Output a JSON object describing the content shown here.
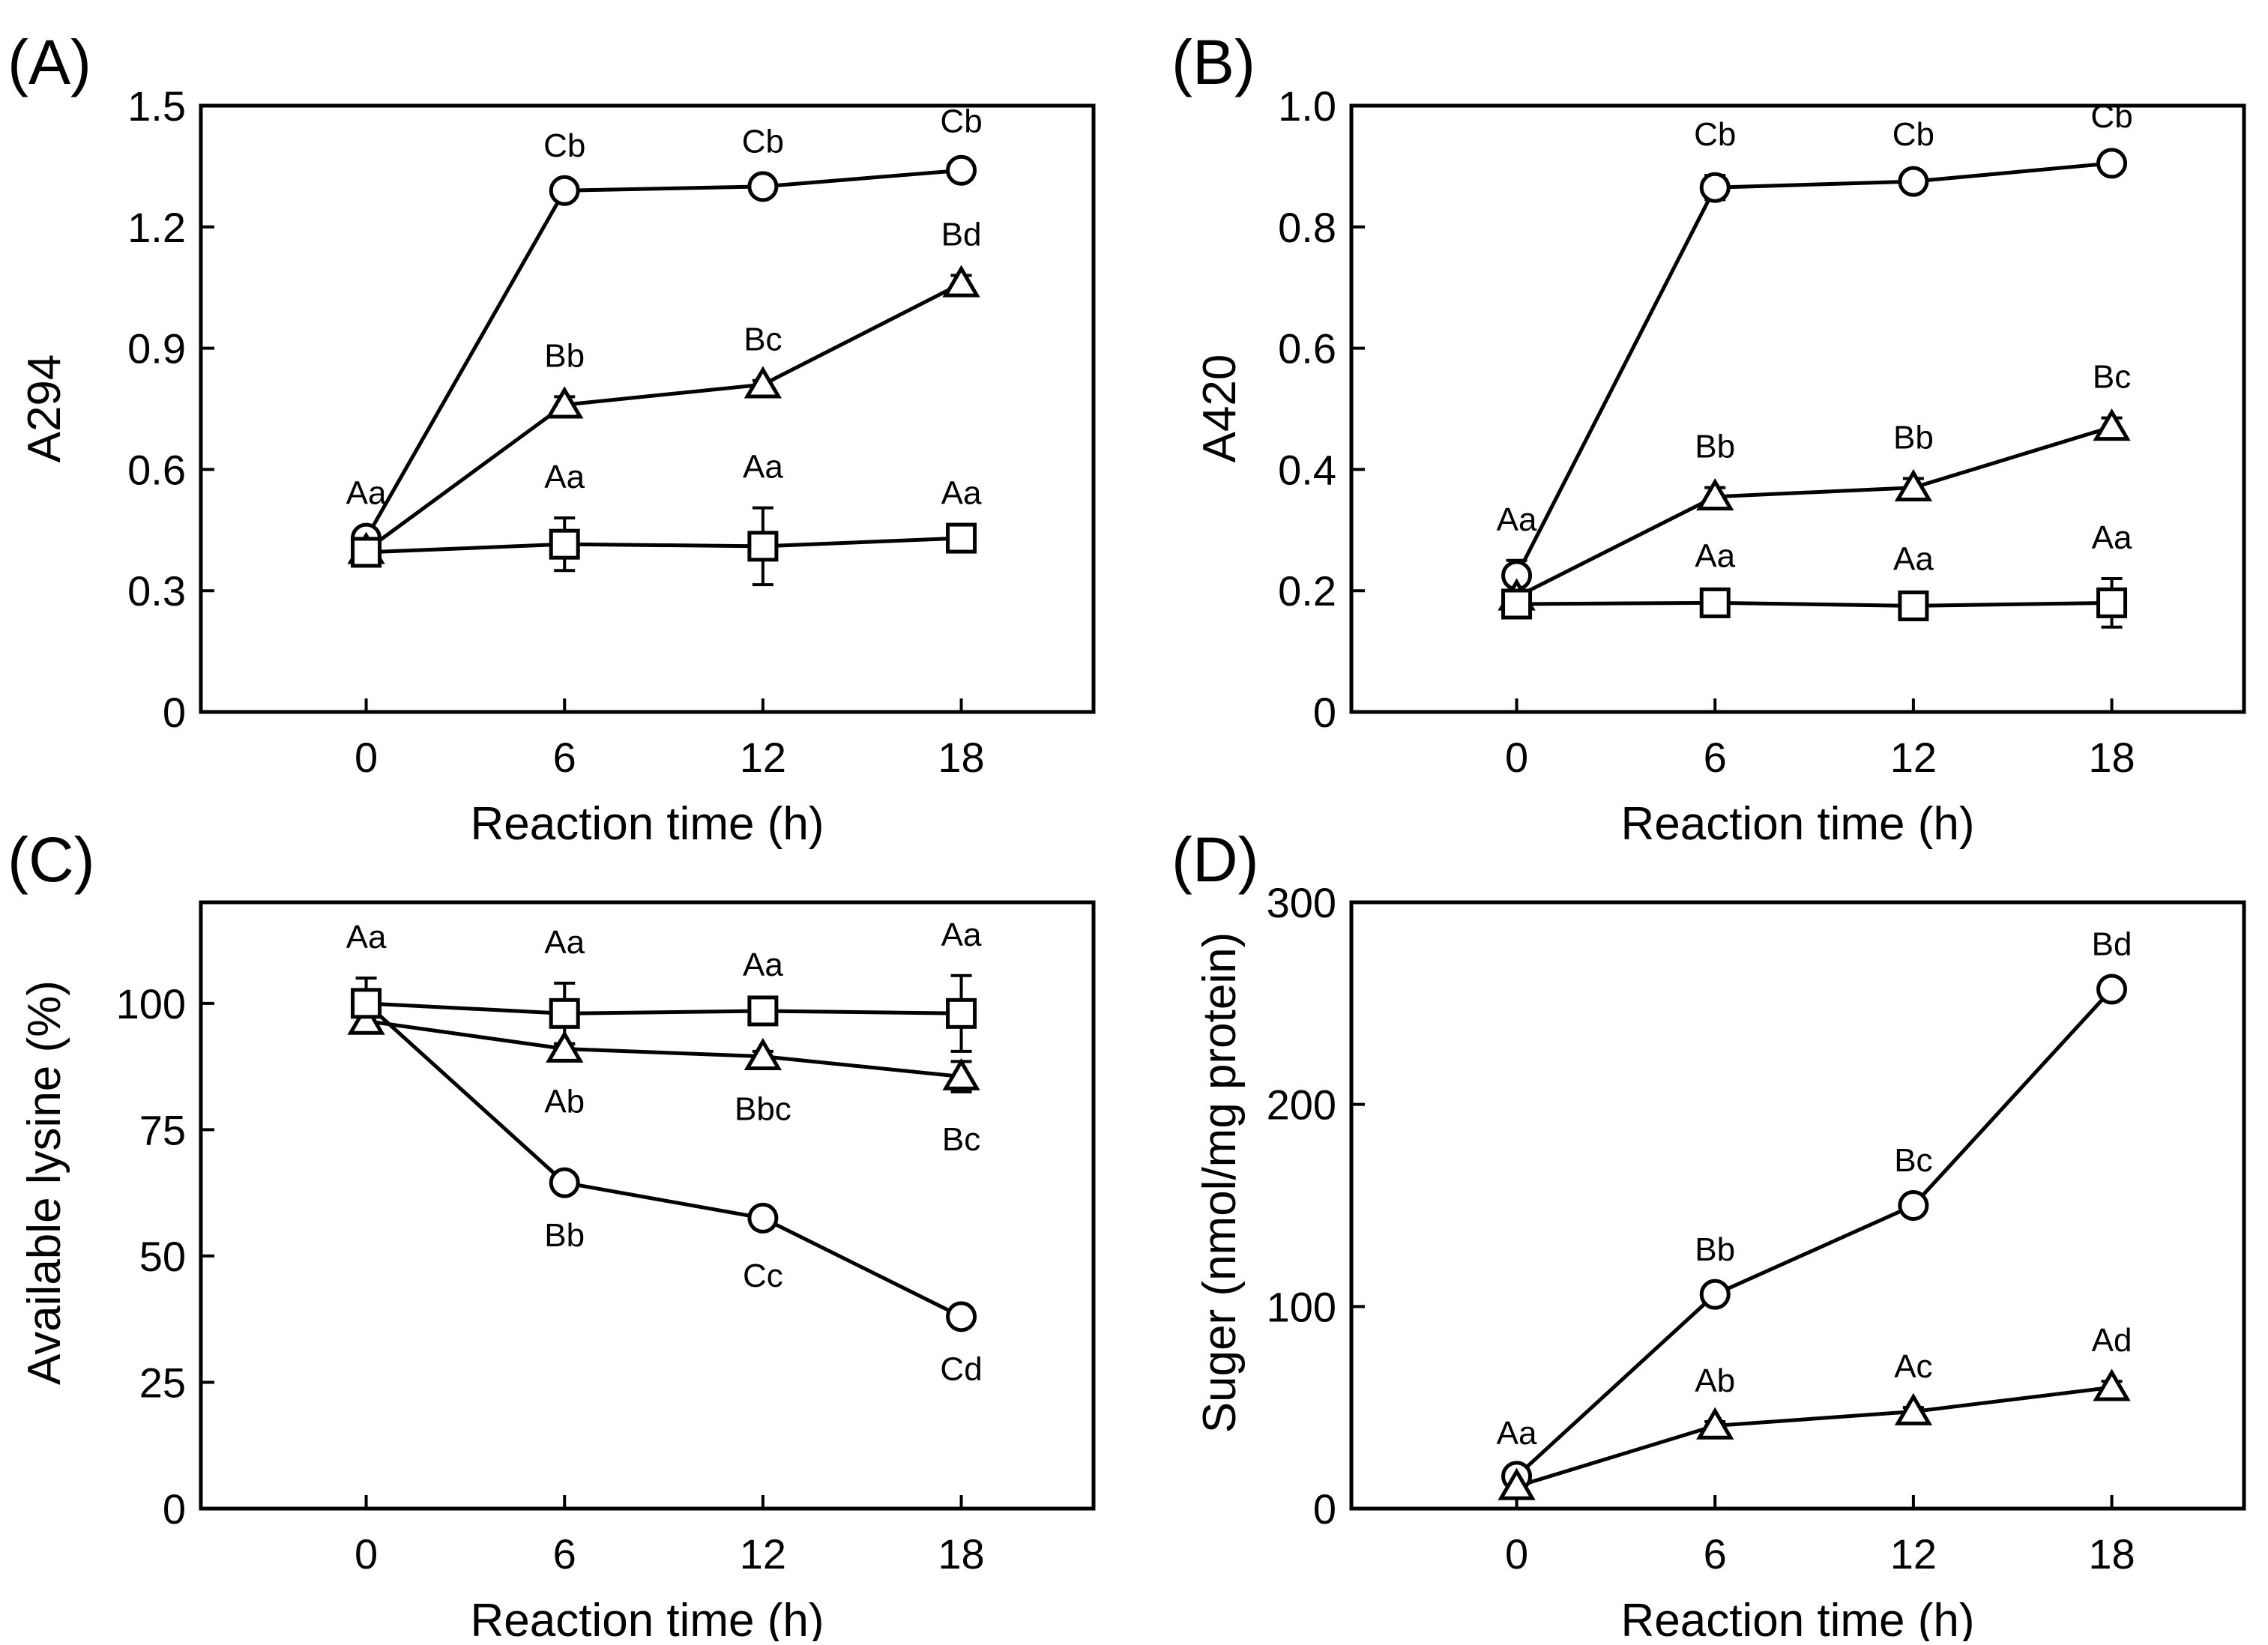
{
  "colors": {
    "line": "#000000",
    "marker_fill": "#ffffff",
    "background": "#ffffff"
  },
  "chart_data": [
    {
      "panel": "(A)",
      "type": "line",
      "xlabel": "Reaction time (h)",
      "ylabel": "A294",
      "x": [
        0,
        6,
        12,
        18
      ],
      "xlim": [
        -5,
        22
      ],
      "ylim": [
        0,
        1.5
      ],
      "yticks": [
        0,
        0.3,
        0.6,
        0.9,
        1.2,
        1.5
      ],
      "ytick_labels": [
        "0",
        "0.3",
        "0.6",
        "0.9",
        "1.2",
        "1.5"
      ],
      "series": [
        {
          "marker": "circle",
          "values": [
            0.43,
            1.29,
            1.3,
            1.34
          ],
          "errors": [
            0.01,
            0.01,
            0.01,
            0.02
          ],
          "labels": [
            "Aa",
            "Cb",
            "Cb",
            "Cb"
          ],
          "label_pos": [
            "above",
            "above",
            "above",
            "above"
          ]
        },
        {
          "marker": "triangle",
          "values": [
            0.4,
            0.76,
            0.81,
            1.06
          ],
          "errors": [
            0.01,
            0.02,
            0.01,
            0.02
          ],
          "labels": [
            "",
            "Bb",
            "Bc",
            "Bd"
          ],
          "label_pos": [
            "",
            "above",
            "above",
            "above"
          ]
        },
        {
          "marker": "square",
          "values": [
            0.395,
            0.415,
            0.41,
            0.43
          ],
          "errors": [
            0.01,
            0.065,
            0.095,
            0.01
          ],
          "labels": [
            "",
            "Aa",
            "Aa",
            "Aa"
          ],
          "label_pos": [
            "",
            "above",
            "above",
            "above"
          ]
        }
      ]
    },
    {
      "panel": "(B)",
      "type": "line",
      "xlabel": "Reaction time (h)",
      "ylabel": "A420",
      "x": [
        0,
        6,
        12,
        18
      ],
      "xlim": [
        -5,
        22
      ],
      "ylim": [
        0,
        1.0
      ],
      "yticks": [
        0,
        0.2,
        0.4,
        0.6,
        0.8,
        1.0
      ],
      "ytick_labels": [
        "0",
        "0.2",
        "0.4",
        "0.6",
        "0.8",
        "1.0"
      ],
      "series": [
        {
          "marker": "circle",
          "values": [
            0.225,
            0.865,
            0.875,
            0.905
          ],
          "errors": [
            0.025,
            0.02,
            0.01,
            0.01
          ],
          "labels": [
            "Aa",
            "Cb",
            "Cb",
            "Cb"
          ],
          "label_pos": [
            "above",
            "above",
            "above",
            "above"
          ]
        },
        {
          "marker": "triangle",
          "values": [
            0.19,
            0.355,
            0.37,
            0.47
          ],
          "errors": [
            0.01,
            0.015,
            0.015,
            0.015
          ],
          "labels": [
            "",
            "Bb",
            "Bb",
            "Bc"
          ],
          "label_pos": [
            "",
            "above",
            "above",
            "above"
          ]
        },
        {
          "marker": "square",
          "values": [
            0.178,
            0.18,
            0.175,
            0.18
          ],
          "errors": [
            0.01,
            0.01,
            0.01,
            0.04
          ],
          "labels": [
            "",
            "Aa",
            "Aa",
            "Aa"
          ],
          "label_pos": [
            "",
            "above",
            "above",
            "above"
          ]
        }
      ]
    },
    {
      "panel": "(C)",
      "type": "line",
      "xlabel": "Reaction time (h)",
      "ylabel": "Available lysine (%)",
      "x": [
        0,
        6,
        12,
        18
      ],
      "xlim": [
        -5,
        22
      ],
      "ylim": [
        0,
        120
      ],
      "yticks": [
        0,
        25,
        50,
        75,
        100
      ],
      "ytick_labels": [
        "0",
        "25",
        "50",
        "75",
        "100"
      ],
      "series": [
        {
          "marker": "circle",
          "values": [
            100,
            64.5,
            57.5,
            38
          ],
          "errors": [
            1,
            1,
            2,
            1
          ],
          "labels": [
            "",
            "Bb",
            "Cc",
            "Cd"
          ],
          "label_pos": [
            "",
            "below",
            "below",
            "below"
          ]
        },
        {
          "marker": "triangle",
          "values": [
            96.5,
            91,
            89.5,
            85.5
          ],
          "errors": [
            1,
            1,
            1,
            3
          ],
          "labels": [
            "",
            "Ab",
            "Bbc",
            "Bc"
          ],
          "label_pos": [
            "",
            "below",
            "below",
            "below"
          ]
        },
        {
          "marker": "square",
          "values": [
            100,
            98,
            98.5,
            98
          ],
          "errors": [
            5,
            6,
            1,
            7.5
          ],
          "labels": [
            "Aa",
            "Aa",
            "Aa",
            "Aa"
          ],
          "label_pos": [
            "above",
            "above",
            "above",
            "above"
          ]
        }
      ]
    },
    {
      "panel": "(D)",
      "type": "line",
      "xlabel": "Reaction time (h)",
      "ylabel": "Suger (nmol/mg protein)",
      "x": [
        0,
        6,
        12,
        18
      ],
      "xlim": [
        -5,
        22
      ],
      "ylim": [
        0,
        300
      ],
      "yticks": [
        0,
        100,
        200,
        300
      ],
      "ytick_labels": [
        "0",
        "100",
        "200",
        "300"
      ],
      "series": [
        {
          "marker": "circle",
          "values": [
            16,
            106,
            150,
            257
          ],
          "errors": [
            1,
            2,
            2,
            2
          ],
          "labels": [
            "Aa",
            "Bb",
            "Bc",
            "Bd"
          ],
          "label_pos": [
            "above",
            "above",
            "above",
            "above"
          ]
        },
        {
          "marker": "triangle",
          "values": [
            11,
            41,
            48,
            60
          ],
          "errors": [
            1,
            2,
            2,
            3
          ],
          "labels": [
            "",
            "Ab",
            "Ac",
            "Ad"
          ],
          "label_pos": [
            "",
            "above",
            "above",
            "above"
          ]
        }
      ]
    }
  ]
}
